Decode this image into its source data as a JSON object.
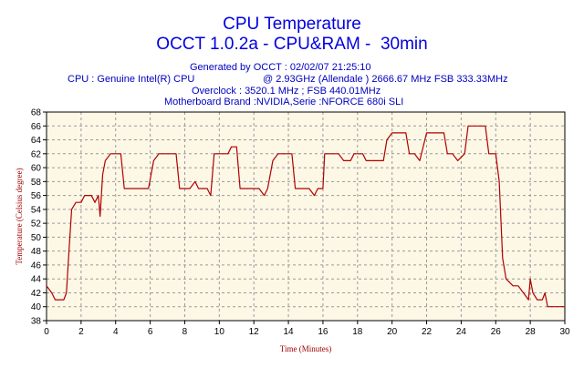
{
  "header": {
    "title": "CPU Temperature",
    "subtitle": "OCCT 1.0.2a - CPU&RAM -  30min",
    "generated": "Generated by OCCT : 02/02/07 21:25:10",
    "cpu_left": "CPU : Genuine Intel(R) CPU",
    "cpu_right": "@ 2.93GHz (Allendale ) 2666.67 MHz FSB 333.33MHz",
    "overclock": "Overclock : 3520.1 MHz ; FSB 440.01MHz",
    "motherboard": "Motherboard Brand :NVIDIA,Serie :NFORCE 680i SLI"
  },
  "colors": {
    "plot_bg": "#fdf7e6",
    "line": "#b00000",
    "grid": "#9a9a9a",
    "axis_label": "#a00000",
    "title": "#0000e0"
  },
  "chart_data": {
    "type": "line",
    "xlabel": "Time (Minutes)",
    "ylabel": "Temperature (Celsius degree)",
    "xlim": [
      0,
      30
    ],
    "ylim": [
      38,
      68
    ],
    "x_ticks": [
      0,
      2,
      4,
      6,
      8,
      10,
      12,
      14,
      16,
      18,
      20,
      22,
      24,
      26,
      28,
      30
    ],
    "y_ticks": [
      38,
      40,
      42,
      44,
      46,
      48,
      50,
      52,
      54,
      56,
      58,
      60,
      62,
      64,
      66,
      68
    ],
    "grid": true,
    "series": [
      {
        "points": [
          [
            0,
            43
          ],
          [
            0.3,
            42
          ],
          [
            0.5,
            41
          ],
          [
            1.0,
            41
          ],
          [
            1.15,
            42
          ],
          [
            1.3,
            48
          ],
          [
            1.45,
            54
          ],
          [
            1.7,
            55
          ],
          [
            2.0,
            55
          ],
          [
            2.2,
            56
          ],
          [
            2.6,
            56
          ],
          [
            2.8,
            55
          ],
          [
            3.0,
            56
          ],
          [
            3.1,
            53
          ],
          [
            3.25,
            59
          ],
          [
            3.4,
            61
          ],
          [
            3.7,
            62
          ],
          [
            4.3,
            62
          ],
          [
            4.5,
            57
          ],
          [
            5.9,
            57
          ],
          [
            6.2,
            61
          ],
          [
            6.5,
            62
          ],
          [
            7.5,
            62
          ],
          [
            7.7,
            57
          ],
          [
            8.3,
            57
          ],
          [
            8.6,
            58
          ],
          [
            8.8,
            57
          ],
          [
            9.3,
            57
          ],
          [
            9.5,
            56
          ],
          [
            9.7,
            62
          ],
          [
            10.5,
            62
          ],
          [
            10.7,
            63
          ],
          [
            11.0,
            63
          ],
          [
            11.2,
            57
          ],
          [
            12.3,
            57
          ],
          [
            12.6,
            56
          ],
          [
            12.8,
            57
          ],
          [
            13.1,
            61
          ],
          [
            13.4,
            62
          ],
          [
            14.2,
            62
          ],
          [
            14.4,
            57
          ],
          [
            14.8,
            57
          ],
          [
            15.2,
            57
          ],
          [
            15.5,
            56
          ],
          [
            15.7,
            57
          ],
          [
            16.0,
            57
          ],
          [
            16.1,
            62
          ],
          [
            16.9,
            62
          ],
          [
            17.2,
            61
          ],
          [
            17.6,
            61
          ],
          [
            17.8,
            62
          ],
          [
            18.3,
            62
          ],
          [
            18.5,
            61
          ],
          [
            19.5,
            61
          ],
          [
            19.7,
            64
          ],
          [
            20.0,
            65
          ],
          [
            20.8,
            65
          ],
          [
            21.0,
            62
          ],
          [
            21.3,
            62
          ],
          [
            21.6,
            61
          ],
          [
            22.0,
            65
          ],
          [
            23.0,
            65
          ],
          [
            23.2,
            62
          ],
          [
            23.5,
            62
          ],
          [
            23.8,
            61
          ],
          [
            24.2,
            62
          ],
          [
            24.4,
            66
          ],
          [
            25.4,
            66
          ],
          [
            25.6,
            62
          ],
          [
            26.0,
            62
          ],
          [
            26.2,
            58
          ],
          [
            26.4,
            47
          ],
          [
            26.6,
            44
          ],
          [
            27.0,
            43
          ],
          [
            27.3,
            43
          ],
          [
            27.6,
            42
          ],
          [
            27.9,
            41
          ],
          [
            28.0,
            44
          ],
          [
            28.15,
            42
          ],
          [
            28.4,
            41
          ],
          [
            28.7,
            41
          ],
          [
            28.85,
            42
          ],
          [
            29.0,
            40
          ],
          [
            30.0,
            40
          ]
        ]
      }
    ]
  }
}
